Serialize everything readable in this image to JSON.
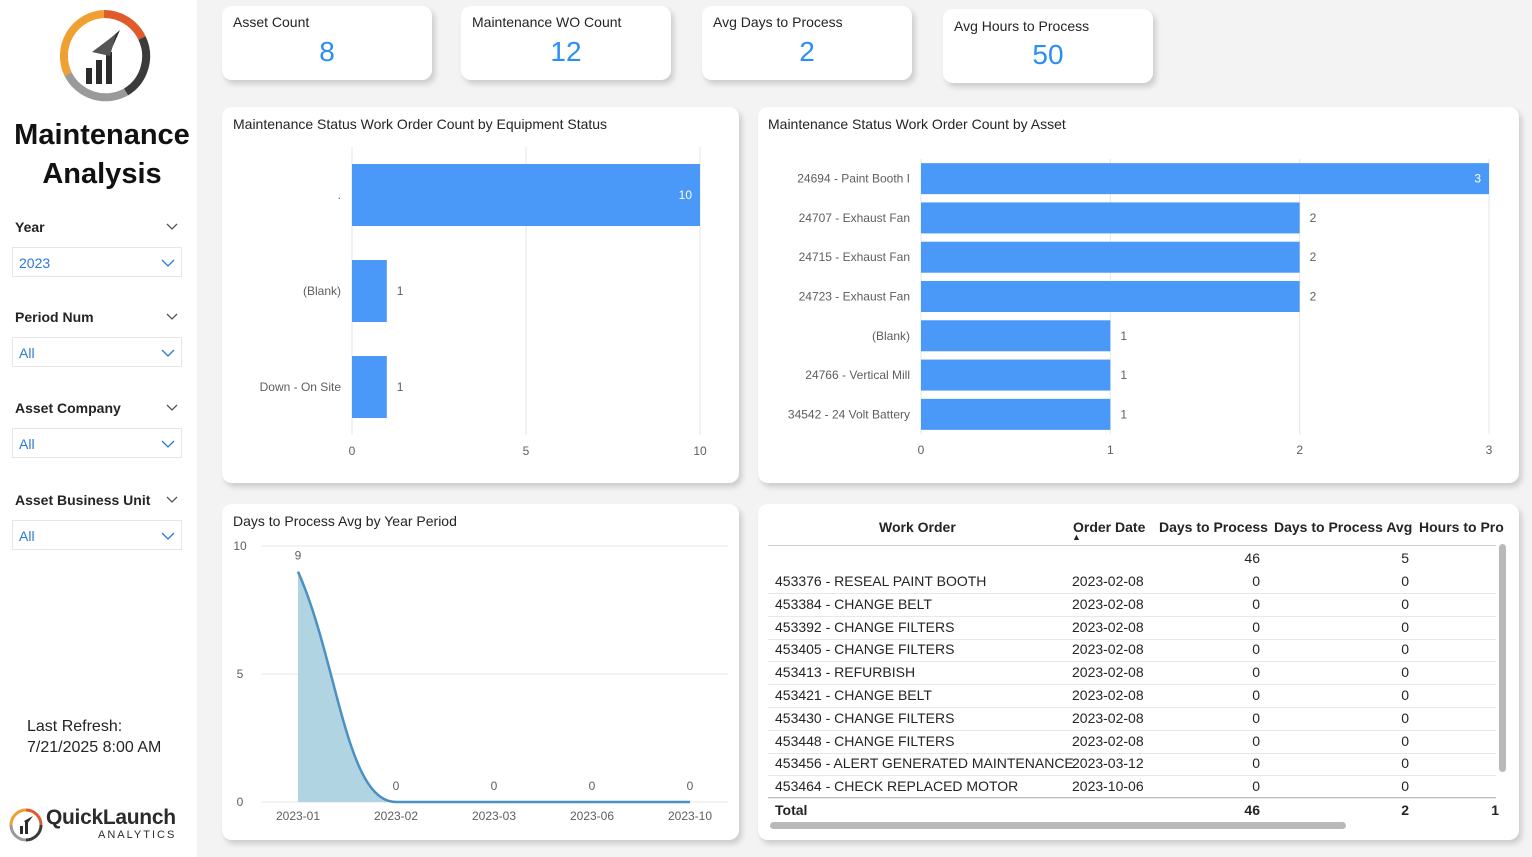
{
  "sidebar": {
    "title_line1": "Maintenance",
    "title_line2": "Analysis",
    "filters": [
      {
        "label": "Year",
        "value": "2023"
      },
      {
        "label": "Period Num",
        "value": "All"
      },
      {
        "label": "Asset Company",
        "value": "All"
      },
      {
        "label": "Asset Business Unit",
        "value": "All"
      }
    ],
    "last_refresh_label": "Last Refresh:",
    "last_refresh_value": "7/21/2025 8:00 AM",
    "brand_name": "QuickLaunch",
    "brand_sub": "ANALYTICS"
  },
  "kpis": [
    {
      "label": "Asset Count",
      "value": "8"
    },
    {
      "label": "Maintenance WO Count",
      "value": "12"
    },
    {
      "label": "Avg Days to Process",
      "value": "2"
    },
    {
      "label": "Avg Hours to Process",
      "value": "50"
    }
  ],
  "colors": {
    "bar": "#4a98f7",
    "accent": "#2b8ef4",
    "area": "#a9cfe0",
    "line": "#4a90c2"
  },
  "chart_data": [
    {
      "type": "bar",
      "orientation": "horizontal",
      "title": "Maintenance Status Work Order Count by Equipment Status",
      "categories": [
        ".",
        "(Blank)",
        "Down - On Site"
      ],
      "values": [
        10,
        1,
        1
      ],
      "xlim": [
        0,
        10
      ],
      "xticks": [
        "0",
        "5",
        "10"
      ],
      "grid": true
    },
    {
      "type": "bar",
      "orientation": "horizontal",
      "title": "Maintenance Status Work Order Count by Asset",
      "categories": [
        "24694 - Paint Booth I",
        "24707 - Exhaust Fan",
        "24715 - Exhaust Fan",
        "24723 - Exhaust Fan",
        "(Blank)",
        "24766 - Vertical Mill",
        "34542 - 24 Volt Battery"
      ],
      "values": [
        3,
        2,
        2,
        2,
        1,
        1,
        1
      ],
      "xlim": [
        0,
        3
      ],
      "xticks": [
        "0",
        "1",
        "2",
        "3"
      ],
      "grid": true
    },
    {
      "type": "area",
      "title": "Days to Process Avg by Year Period",
      "x": [
        "2023-01",
        "2023-02",
        "2023-03",
        "2023-06",
        "2023-10"
      ],
      "values": [
        9,
        0,
        0,
        0,
        0
      ],
      "ylim": [
        0,
        10
      ],
      "yticks": [
        "0",
        "5",
        "10"
      ],
      "grid": true
    }
  ],
  "table": {
    "headers": [
      "Work Order",
      "Order Date",
      "Days to Process",
      "Days to Process Avg",
      "Hours to Pro"
    ],
    "sort_indicator": "▲",
    "subtotal": {
      "days": "46",
      "avg": "5"
    },
    "rows": [
      {
        "wo": "453376 - RESEAL PAINT BOOTH",
        "date": "2023-02-08",
        "days": "0",
        "avg": "0"
      },
      {
        "wo": "453384 - CHANGE BELT",
        "date": "2023-02-08",
        "days": "0",
        "avg": "0"
      },
      {
        "wo": "453392 - CHANGE FILTERS",
        "date": "2023-02-08",
        "days": "0",
        "avg": "0"
      },
      {
        "wo": "453405 - CHANGE FILTERS",
        "date": "2023-02-08",
        "days": "0",
        "avg": "0"
      },
      {
        "wo": "453413 - REFURBISH",
        "date": "2023-02-08",
        "days": "0",
        "avg": "0"
      },
      {
        "wo": "453421 - CHANGE BELT",
        "date": "2023-02-08",
        "days": "0",
        "avg": "0"
      },
      {
        "wo": "453430 - CHANGE FILTERS",
        "date": "2023-02-08",
        "days": "0",
        "avg": "0"
      },
      {
        "wo": "453448 - CHANGE FILTERS",
        "date": "2023-02-08",
        "days": "0",
        "avg": "0"
      },
      {
        "wo": "453456 - ALERT GENERATED MAINTENANCE",
        "date": "2023-03-12",
        "days": "0",
        "avg": "0"
      },
      {
        "wo": "453464 - CHECK REPLACED MOTOR",
        "date": "2023-10-06",
        "days": "0",
        "avg": "0"
      }
    ],
    "total": {
      "label": "Total",
      "days": "46",
      "avg": "2",
      "hours": "1"
    }
  }
}
